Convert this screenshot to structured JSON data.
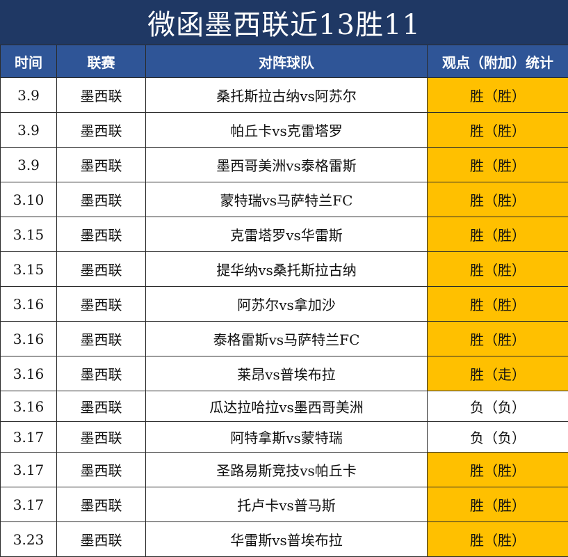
{
  "title": "微函墨西联近13胜11",
  "headers": {
    "time": "时间",
    "league": "联赛",
    "match": "对阵球队",
    "stat": "观点（附加）统计"
  },
  "rows": [
    {
      "time": "3.9",
      "league": "墨西联",
      "match": "桑托斯拉古纳vs阿苏尔",
      "result": "胜（胜）",
      "win": true
    },
    {
      "time": "3.9",
      "league": "墨西联",
      "match": "帕丘卡vs克雷塔罗",
      "result": "胜（胜）",
      "win": true
    },
    {
      "time": "3.9",
      "league": "墨西联",
      "match": "墨西哥美洲vs泰格雷斯",
      "result": "胜（胜）",
      "win": true
    },
    {
      "time": "3.10",
      "league": "墨西联",
      "match": "蒙特瑞vs马萨特兰FC",
      "result": "胜（胜）",
      "win": true
    },
    {
      "time": "3.15",
      "league": "墨西联",
      "match": "克雷塔罗vs华雷斯",
      "result": "胜（胜）",
      "win": true
    },
    {
      "time": "3.15",
      "league": "墨西联",
      "match": "提华纳vs桑托斯拉古纳",
      "result": "胜（胜）",
      "win": true
    },
    {
      "time": "3.16",
      "league": "墨西联",
      "match": "阿苏尔vs拿加沙",
      "result": "胜（胜）",
      "win": true
    },
    {
      "time": "3.16",
      "league": "墨西联",
      "match": "泰格雷斯vs马萨特兰FC",
      "result": "胜（胜）",
      "win": true
    },
    {
      "time": "3.16",
      "league": "墨西联",
      "match": "莱昂vs普埃布拉",
      "result": "胜（走）",
      "win": true
    },
    {
      "time": "3.16",
      "league": "墨西联",
      "match": "瓜达拉哈拉vs墨西哥美洲",
      "result": "负（负）",
      "win": false
    },
    {
      "time": "3.17",
      "league": "墨西联",
      "match": "阿特拿斯vs蒙特瑞",
      "result": "负（负）",
      "win": false
    },
    {
      "time": "3.17",
      "league": "墨西联",
      "match": "圣路易斯竞技vs帕丘卡",
      "result": "胜（胜）",
      "win": true
    },
    {
      "time": "3.17",
      "league": "墨西联",
      "match": "托卢卡vs普马斯",
      "result": "胜（胜）",
      "win": true
    },
    {
      "time": "3.23",
      "league": "墨西联",
      "match": "华雷斯vs普埃布拉",
      "result": "胜（胜）",
      "win": true
    }
  ],
  "colors": {
    "title_bg": "#1f3864",
    "header_bg": "#2f5597",
    "win_bg": "#ffc000",
    "win_text": "#e01010"
  }
}
